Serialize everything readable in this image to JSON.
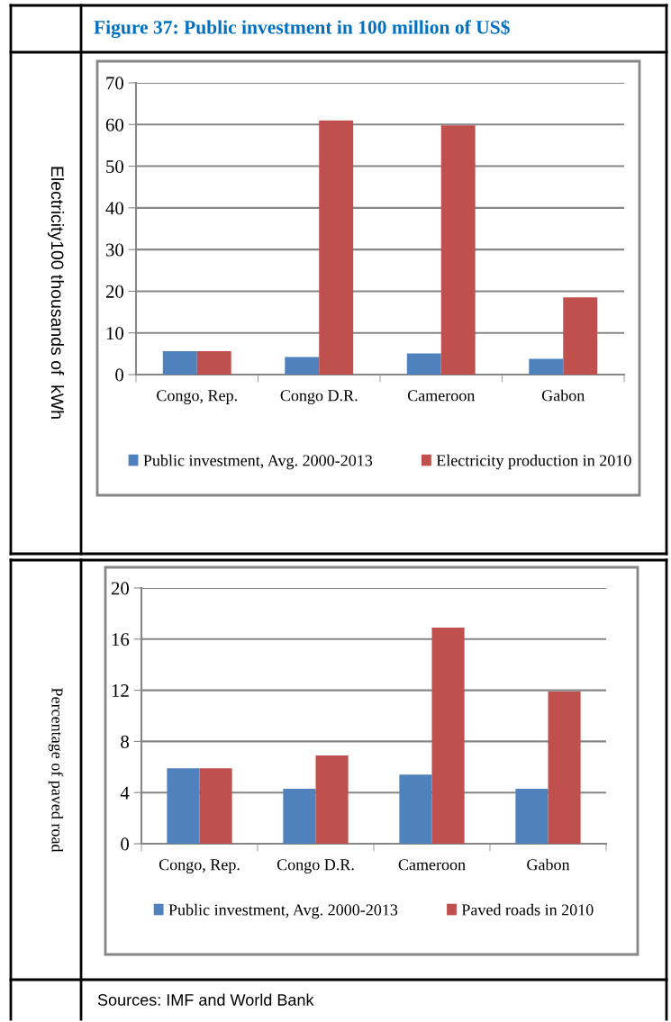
{
  "chart_data": [
    {
      "type": "bar",
      "title": "Figure 37: Public investment in 100 million of US$",
      "ylabel": "Electricity100 thousands of  kWh",
      "categories": [
        "Congo, Rep.",
        "Congo D.R.",
        "Cameroon",
        "Gabon"
      ],
      "series": [
        {
          "name": "Public investment, Avg. 2000-2013",
          "color": "#4f81bd",
          "values": [
            5.6,
            4.2,
            5.1,
            3.8
          ]
        },
        {
          "name": "Electricity production in 2010",
          "color": "#c0504d",
          "values": [
            5.6,
            61,
            59.8,
            18.5
          ]
        }
      ],
      "ylim": [
        0,
        70
      ],
      "yticks": [
        0,
        10,
        20,
        30,
        40,
        50,
        60,
        70
      ],
      "grid": "y",
      "legend": "bottom"
    },
    {
      "type": "bar",
      "ylabel": "Percentage of paved road",
      "categories": [
        "Congo, Rep.",
        "Congo D.R.",
        "Cameroon",
        "Gabon"
      ],
      "series": [
        {
          "name": "Public investment, Avg. 2000-2013",
          "color": "#4f81bd",
          "values": [
            5.9,
            4.3,
            5.4,
            4.3
          ]
        },
        {
          "name": "Paved roads in 2010",
          "color": "#c0504d",
          "values": [
            5.9,
            6.9,
            16.9,
            11.9
          ]
        }
      ],
      "ylim": [
        0,
        20
      ],
      "yticks": [
        0,
        4,
        8,
        12,
        16,
        20
      ],
      "grid": "y",
      "legend": "bottom",
      "annotations": [
        "Sources: IMF and World Bank"
      ]
    }
  ]
}
